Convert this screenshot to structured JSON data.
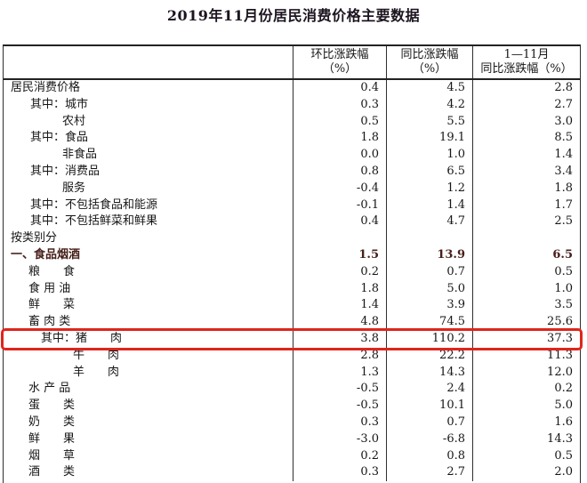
{
  "title": "2019年11月份居民消费价格主要数据",
  "colors": {
    "highlight_box": "#e0251c",
    "section_header_text": "#47201a",
    "border": "#2e2e2e"
  },
  "table": {
    "columns": [
      {
        "line1": "环比涨跌幅",
        "line2": "（%）"
      },
      {
        "line1": "同比涨跌幅",
        "line2": "（%）"
      },
      {
        "line1": "1—11月",
        "line2": "同比涨跌幅（%）"
      }
    ],
    "rows": [
      {
        "label": "居民消费价格",
        "indent": 0,
        "bold": false,
        "highlight": false,
        "values": [
          "0.4",
          "4.5",
          "2.8"
        ]
      },
      {
        "label": "其中：城市",
        "indent": 1,
        "bold": false,
        "highlight": false,
        "values": [
          "0.3",
          "4.2",
          "2.7"
        ]
      },
      {
        "label": "农村",
        "indent": 2,
        "bold": false,
        "highlight": false,
        "values": [
          "0.5",
          "5.5",
          "3.0"
        ]
      },
      {
        "label": "其中：食品",
        "indent": 1,
        "bold": false,
        "highlight": false,
        "values": [
          "1.8",
          "19.1",
          "8.5"
        ]
      },
      {
        "label": "非食品",
        "indent": 2,
        "bold": false,
        "highlight": false,
        "values": [
          "0.0",
          "1.0",
          "1.4"
        ]
      },
      {
        "label": "其中：消费品",
        "indent": 1,
        "bold": false,
        "highlight": false,
        "values": [
          "0.8",
          "6.5",
          "3.4"
        ]
      },
      {
        "label": "服务",
        "indent": 2,
        "bold": false,
        "highlight": false,
        "values": [
          "-0.4",
          "1.2",
          "1.8"
        ]
      },
      {
        "label": "其中：不包括食品和能源",
        "indent": 1,
        "bold": false,
        "highlight": false,
        "values": [
          "-0.1",
          "1.4",
          "1.7"
        ]
      },
      {
        "label": "其中：不包括鲜菜和鲜果",
        "indent": 1,
        "bold": false,
        "highlight": false,
        "values": [
          "0.4",
          "4.7",
          "2.5"
        ]
      },
      {
        "label": "按类别分",
        "indent": 0,
        "bold": false,
        "highlight": false,
        "values": [
          "",
          "",
          ""
        ]
      },
      {
        "label": "一、食品烟酒",
        "indent": 0,
        "bold": true,
        "highlight": false,
        "values": [
          "1.5",
          "13.9",
          "6.5"
        ]
      },
      {
        "label": "粮　　食",
        "indent": 3,
        "bold": false,
        "highlight": false,
        "values": [
          "0.2",
          "0.7",
          "0.5"
        ]
      },
      {
        "label": "食 用 油",
        "indent": 3,
        "bold": false,
        "highlight": false,
        "values": [
          "1.8",
          "5.0",
          "1.0"
        ]
      },
      {
        "label": "鲜　　菜",
        "indent": 3,
        "bold": false,
        "highlight": false,
        "values": [
          "1.4",
          "3.9",
          "3.5"
        ]
      },
      {
        "label": "畜 肉 类",
        "indent": 3,
        "bold": false,
        "highlight": false,
        "values": [
          "4.8",
          "74.5",
          "25.6"
        ]
      },
      {
        "label": "其中：猪　　肉",
        "indent": 4,
        "bold": false,
        "highlight": true,
        "values": [
          "3.8",
          "110.2",
          "37.3"
        ]
      },
      {
        "label": "牛　　肉",
        "indent": 5,
        "bold": false,
        "highlight": false,
        "values": [
          "2.8",
          "22.2",
          "11.3"
        ]
      },
      {
        "label": "羊　　肉",
        "indent": 5,
        "bold": false,
        "highlight": false,
        "values": [
          "1.3",
          "14.3",
          "12.0"
        ]
      },
      {
        "label": "水 产 品",
        "indent": 3,
        "bold": false,
        "highlight": false,
        "values": [
          "-0.5",
          "2.4",
          "0.2"
        ]
      },
      {
        "label": "蛋　　类",
        "indent": 3,
        "bold": false,
        "highlight": false,
        "values": [
          "-0.5",
          "10.1",
          "5.0"
        ]
      },
      {
        "label": "奶　　类",
        "indent": 3,
        "bold": false,
        "highlight": false,
        "values": [
          "0.3",
          "0.7",
          "1.6"
        ]
      },
      {
        "label": "鲜　　果",
        "indent": 3,
        "bold": false,
        "highlight": false,
        "values": [
          "-3.0",
          "-6.8",
          "14.3"
        ]
      },
      {
        "label": "烟　　草",
        "indent": 3,
        "bold": false,
        "highlight": false,
        "values": [
          "0.2",
          "0.8",
          "0.5"
        ]
      },
      {
        "label": "酒　　类",
        "indent": 3,
        "bold": false,
        "highlight": false,
        "values": [
          "0.3",
          "2.7",
          "2.0"
        ]
      }
    ]
  }
}
